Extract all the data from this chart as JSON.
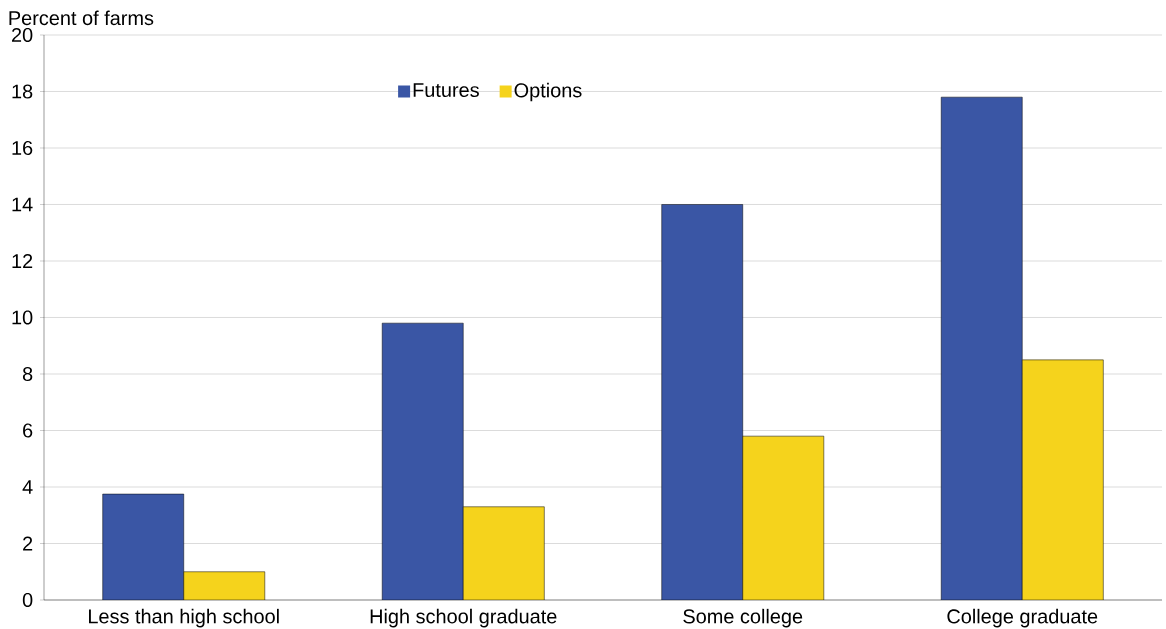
{
  "chart_data": {
    "type": "bar",
    "ylabel": "Percent of farms",
    "categories": [
      "Less than high school",
      "High school graduate",
      "Some college",
      "College graduate"
    ],
    "series": [
      {
        "name": "Futures",
        "color": "#3a56a5",
        "values": [
          3.75,
          9.8,
          14.0,
          17.8
        ]
      },
      {
        "name": "Options",
        "color": "#f5d31c",
        "values": [
          1.0,
          3.3,
          5.8,
          8.5
        ]
      }
    ],
    "ylim": [
      0,
      20
    ],
    "yticks": [
      0,
      2,
      4,
      6,
      8,
      10,
      12,
      14,
      16,
      18,
      20
    ],
    "grid": "y",
    "legend": "top"
  }
}
